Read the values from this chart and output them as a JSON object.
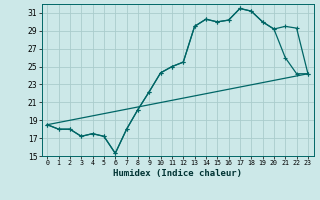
{
  "xlabel": "Humidex (Indice chaleur)",
  "background_color": "#cce8e8",
  "grid_color": "#aacccc",
  "line_color": "#006666",
  "xlim": [
    -0.5,
    23.5
  ],
  "ylim": [
    15,
    32
  ],
  "yticks": [
    15,
    17,
    19,
    21,
    23,
    25,
    27,
    29,
    31
  ],
  "xticks": [
    0,
    1,
    2,
    3,
    4,
    5,
    6,
    7,
    8,
    9,
    10,
    11,
    12,
    13,
    14,
    15,
    16,
    17,
    18,
    19,
    20,
    21,
    22,
    23
  ],
  "line1_x": [
    0,
    1,
    2,
    3,
    4,
    5,
    6,
    7,
    8,
    9,
    10,
    11,
    12,
    13,
    14,
    15,
    16,
    17,
    18,
    19,
    20,
    21,
    22,
    23
  ],
  "line1_y": [
    18.5,
    18.0,
    18.0,
    17.2,
    17.5,
    17.2,
    15.3,
    18.0,
    20.2,
    22.2,
    24.3,
    25.0,
    25.5,
    29.5,
    30.3,
    30.0,
    30.2,
    31.5,
    31.2,
    30.0,
    29.2,
    29.5,
    29.3,
    24.2
  ],
  "line2_x": [
    0,
    1,
    2,
    3,
    4,
    5,
    6,
    7,
    8,
    9,
    10,
    11,
    12,
    13,
    14,
    15,
    16,
    17,
    18,
    19,
    20,
    21,
    22,
    23
  ],
  "line2_y": [
    18.5,
    18.0,
    18.0,
    17.2,
    17.5,
    17.2,
    15.3,
    18.0,
    20.2,
    22.2,
    24.3,
    25.0,
    25.5,
    29.5,
    30.3,
    30.0,
    30.2,
    31.5,
    31.2,
    30.0,
    29.2,
    26.0,
    24.2,
    24.2
  ],
  "line3_x": [
    0,
    23
  ],
  "line3_y": [
    18.5,
    24.2
  ]
}
